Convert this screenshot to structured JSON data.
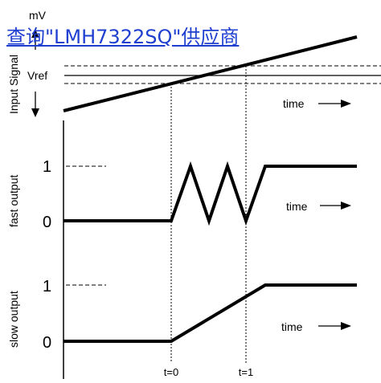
{
  "link": {
    "text": "查询\"LMH7322SQ\"供应商"
  },
  "top_panel": {
    "unit": "mV",
    "ylabel": "Input Signal",
    "vref_label": "Vref",
    "time_label": "time"
  },
  "fast_panel": {
    "ylabel": "fast output",
    "level_high": "1",
    "level_low": "0",
    "time_label": "time"
  },
  "slow_panel": {
    "ylabel": "slow output",
    "level_high": "1",
    "level_low": "0",
    "time_label": "time"
  },
  "markers": {
    "t0": "t=0",
    "t1": "t=1"
  },
  "colors": {
    "ink": "#000000",
    "link": "#1f3fd1"
  }
}
